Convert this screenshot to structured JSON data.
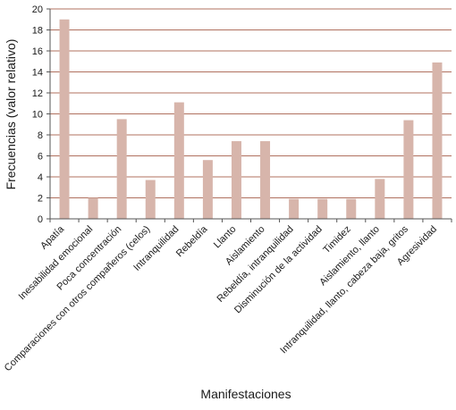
{
  "chart_data": {
    "type": "bar",
    "title": "",
    "xlabel": "Manifestaciones",
    "ylabel": "Frecuencias (valor relativo)",
    "ylim": [
      0,
      20
    ],
    "yticks": [
      0,
      2,
      4,
      6,
      8,
      10,
      12,
      14,
      16,
      18,
      20
    ],
    "grid": true,
    "legend": "none",
    "categories": [
      "Apatía",
      "Inesabilidad emocional",
      "Poca concentración",
      "Comparaciones con otros compañeros (celos)",
      "Intranquilidad",
      "Rebeldía",
      "Llanto",
      "Aislamiento",
      "Rebeldía, intranquilidad",
      "Disminución de la actividad",
      "Timidez",
      "Aislamiento, llanto",
      "Intranquilidad, llanto, cabeza baja, gritos",
      "Agresividad"
    ],
    "values": [
      19,
      2,
      9.5,
      3.7,
      11.1,
      5.6,
      7.4,
      7.4,
      1.9,
      1.9,
      1.9,
      3.8,
      9.4,
      14.9
    ],
    "colors": {
      "bar": "#d7b5ab",
      "grid": "#b0705f",
      "axis": "#555555"
    }
  }
}
